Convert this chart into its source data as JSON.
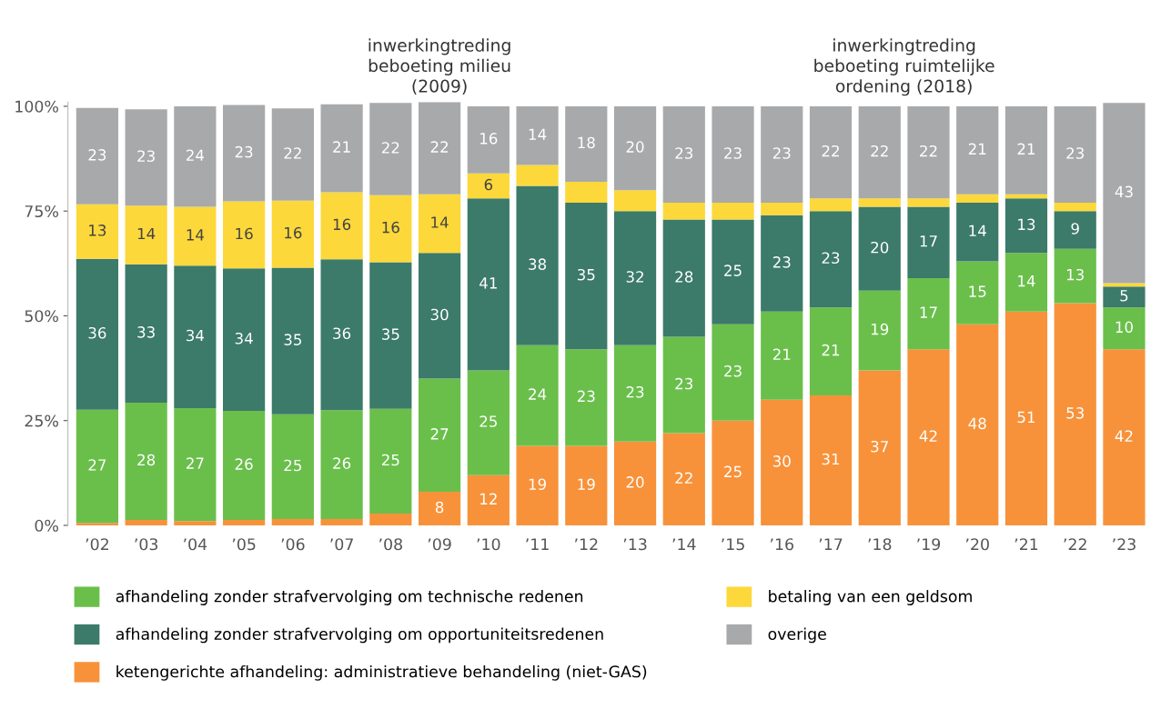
{
  "chart_data": {
    "type": "bar",
    "stacked": true,
    "categories": [
      "’02",
      "’03",
      "’04",
      "’05",
      "’06",
      "’07",
      "’08",
      "’09",
      "’10",
      "’11",
      "’12",
      "’13",
      "’14",
      "’15",
      "’16",
      "’17",
      "’18",
      "’19",
      "’20",
      "’21",
      "’22",
      "’23"
    ],
    "series": [
      {
        "name": "ketengerichte afhandeling: administratieve behandeling (niet-GAS)",
        "color": "#f7923a",
        "values": [
          0.6,
          1.3,
          1,
          1.3,
          1.5,
          1.5,
          2.8,
          8,
          12,
          19,
          19,
          20,
          22,
          25,
          30,
          31,
          37,
          42,
          48,
          51,
          53,
          42
        ],
        "value_labels": [
          null,
          null,
          null,
          null,
          null,
          null,
          null,
          "8",
          "12",
          "19",
          "19",
          "20",
          "22",
          "25",
          "30",
          "31",
          "37",
          "42",
          "48",
          "51",
          "53",
          "42"
        ]
      },
      {
        "name": "afhandeling zonder strafvervolging om technische redenen",
        "color": "#6abf4b",
        "values": [
          27,
          28,
          27,
          26,
          25,
          26,
          25,
          27,
          25,
          24,
          23,
          23,
          23,
          23,
          21,
          21,
          19,
          17,
          15,
          14,
          13,
          10
        ],
        "value_labels": [
          "27",
          "28",
          "27",
          "26",
          "25",
          "26",
          "25",
          "27",
          "25",
          "24",
          "23",
          "23",
          "23",
          "23",
          "21",
          "21",
          "19",
          "17",
          "15",
          "14",
          "13",
          "10"
        ]
      },
      {
        "name": "afhandeling zonder strafvervolging om opportuniteitsredenen",
        "color": "#3c7a6a",
        "values": [
          36,
          33,
          34,
          34,
          35,
          36,
          35,
          30,
          41,
          38,
          35,
          32,
          28,
          25,
          23,
          23,
          20,
          17,
          14,
          13,
          9,
          5
        ],
        "value_labels": [
          "36",
          "33",
          "34",
          "34",
          "35",
          "36",
          "35",
          "30",
          "41",
          "38",
          "35",
          "32",
          "28",
          "25",
          "23",
          "23",
          "20",
          "17",
          "14",
          "13",
          "9",
          "5"
        ]
      },
      {
        "name": "betaling van een geldsom",
        "color": "#fcd83a",
        "values": [
          13,
          14,
          14,
          16,
          16,
          16,
          16,
          14,
          6,
          5,
          5,
          5,
          4,
          4,
          3,
          3,
          2,
          2,
          2,
          1,
          2,
          0.8
        ],
        "value_labels": [
          "13",
          "14",
          "14",
          "16",
          "16",
          "16",
          "16",
          "14",
          "6",
          null,
          null,
          null,
          null,
          null,
          null,
          null,
          null,
          null,
          null,
          null,
          null,
          null
        ]
      },
      {
        "name": "overige",
        "color": "#a8a9ab",
        "values": [
          23,
          23,
          24,
          23,
          22,
          21,
          22,
          22,
          16,
          14,
          18,
          20,
          23,
          23,
          23,
          22,
          22,
          22,
          21,
          21,
          23,
          43
        ],
        "value_labels": [
          "23",
          "23",
          "24",
          "23",
          "22",
          "21",
          "22",
          "22",
          "16",
          "14",
          "18",
          "20",
          "23",
          "23",
          "23",
          "22",
          "22",
          "22",
          "21",
          "21",
          "23",
          "43"
        ]
      }
    ],
    "ylim": [
      0,
      101
    ],
    "yticks": [
      {
        "value": 0,
        "label": "0%"
      },
      {
        "value": 25,
        "label": "25%"
      },
      {
        "value": 50,
        "label": "50%"
      },
      {
        "value": 75,
        "label": "75%"
      },
      {
        "value": 100,
        "label": "100%"
      }
    ],
    "annotations": [
      "inwerkingtreding\nbeboeting milieu\n(2009)",
      "inwerkingtreding\nbeboeting ruimtelijke\nordening (2018)"
    ],
    "legend": "bottom",
    "grid": false
  }
}
